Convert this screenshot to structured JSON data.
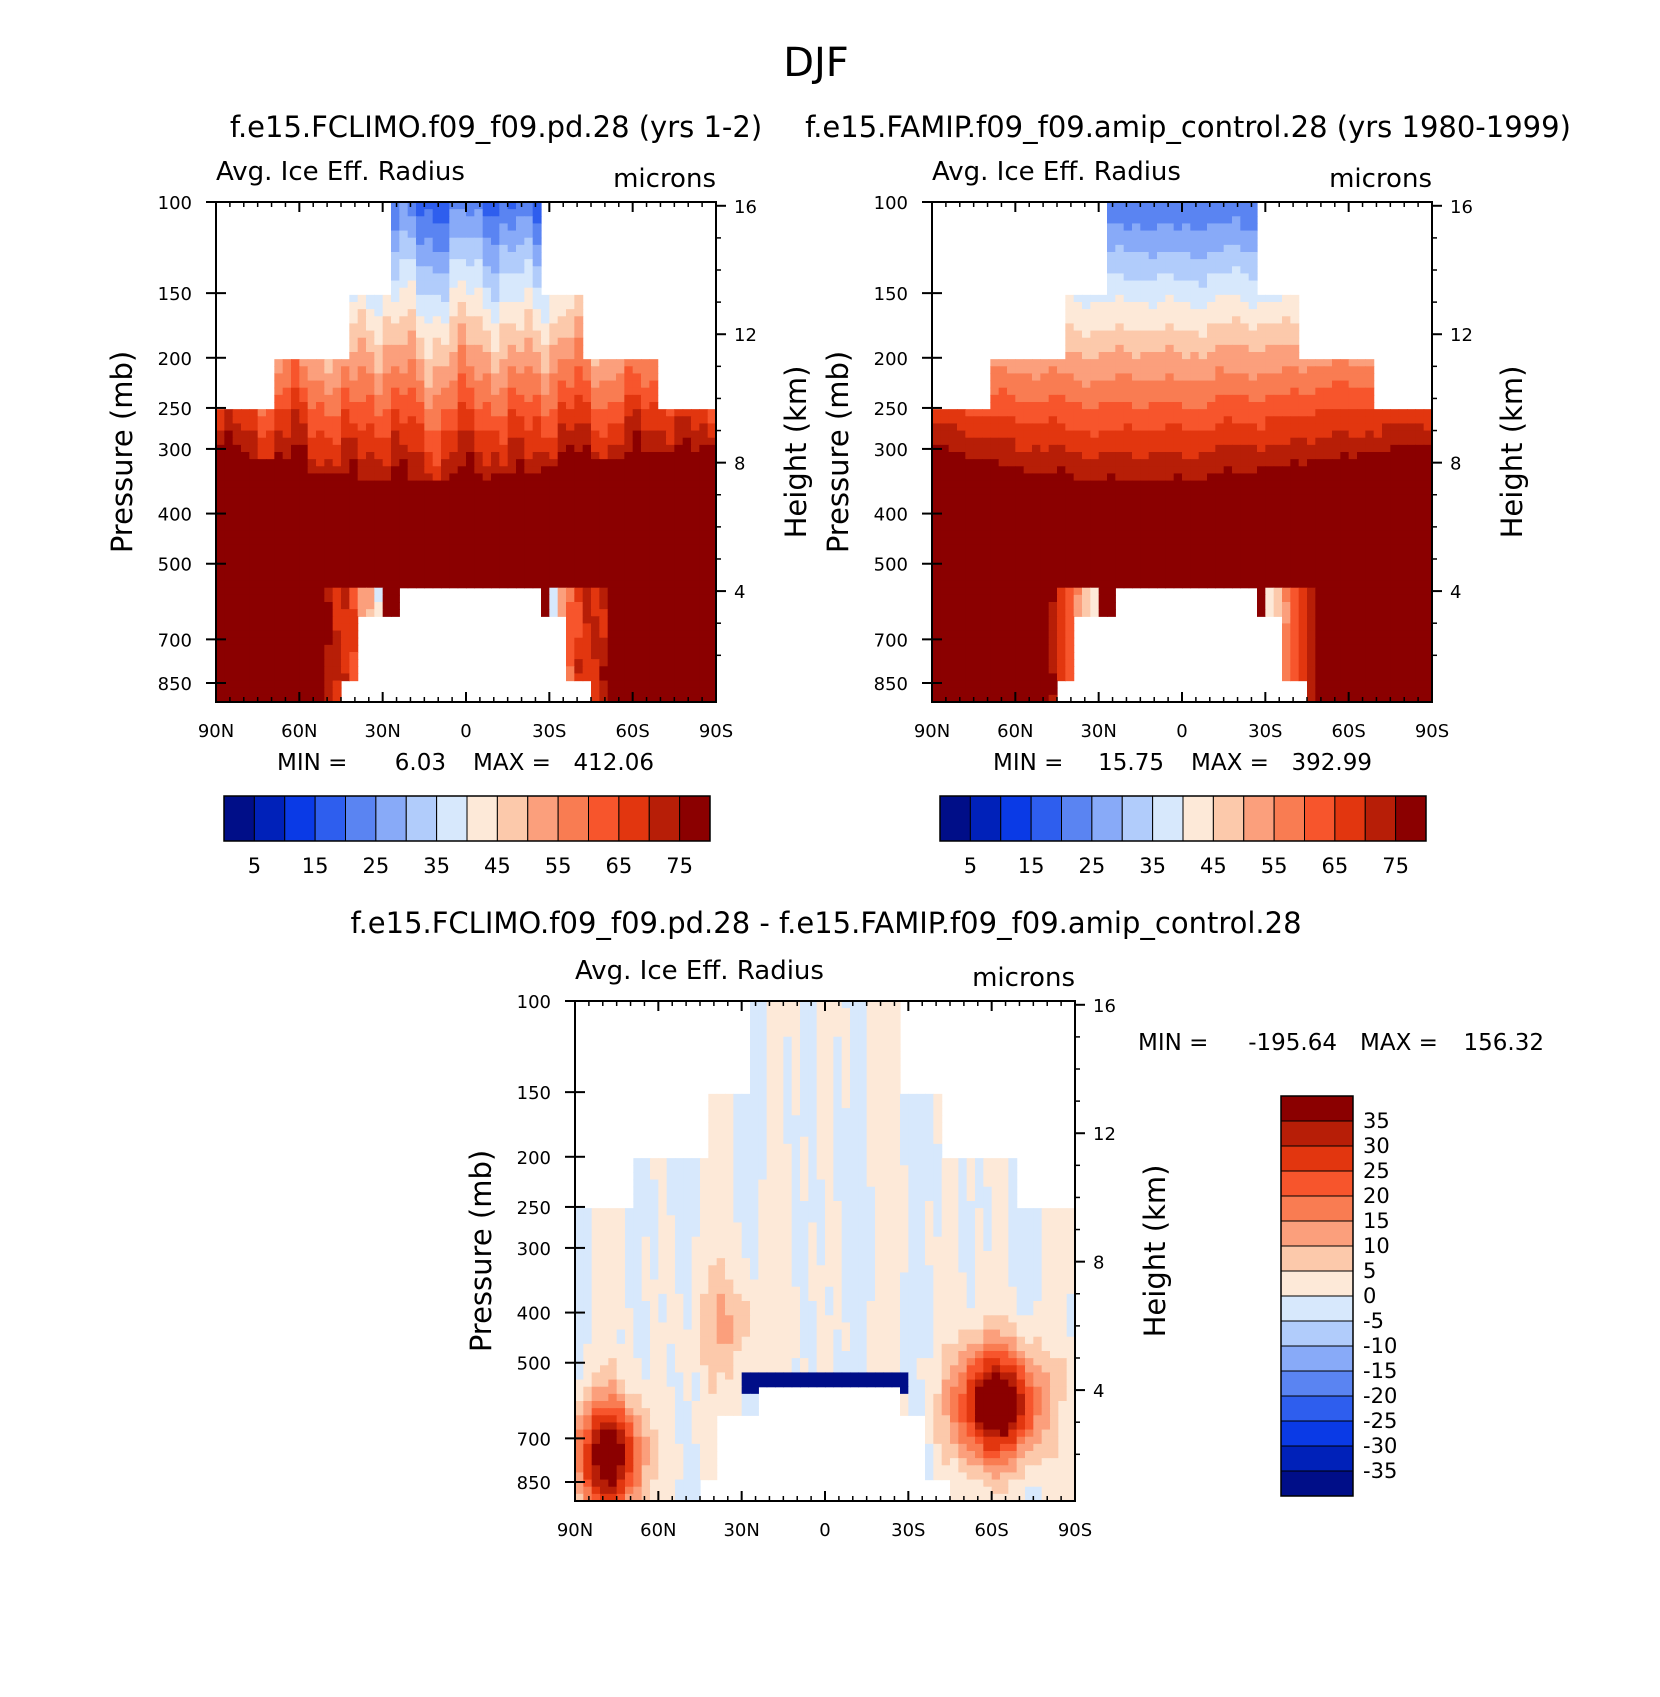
{
  "figure": {
    "title": "DJF"
  },
  "colors": {
    "positive_ramp": [
      "#fde9d8",
      "#fcc9ab",
      "#fb9f7c",
      "#f97c52",
      "#f7552c",
      "#e2360f",
      "#b71e07",
      "#8b0000"
    ],
    "negative_ramp": [
      "#d7e8fc",
      "#b1ccfb",
      "#88aaf8",
      "#5a84f2",
      "#2e5eee",
      "#0a3ae6",
      "#0021b9",
      "#000e88"
    ],
    "frame": "#000000"
  },
  "chart_data": [
    {
      "type": "heatmap",
      "id": "panel_a",
      "title": "f.e15.FCLIMO.f09_f09.pd.28 (yrs 1-2)",
      "variable_label": "Avg. Ice Eff. Radius",
      "units_label": "microns",
      "xlabel": "",
      "ylabel": "Pressure (mb)",
      "ylabel_right": "Height (km)",
      "x_ticks": [
        "90N",
        "60N",
        "30N",
        "0",
        "30S",
        "60S",
        "90S"
      ],
      "x_values": [
        90,
        60,
        30,
        0,
        -30,
        -60,
        -90
      ],
      "y_ticks": [
        100,
        150,
        200,
        250,
        300,
        400,
        500,
        700,
        850
      ],
      "y_range": [
        100,
        925
      ],
      "y_scale": "log",
      "height_ticks": [
        16,
        12,
        8,
        4
      ],
      "min_label": "MIN =",
      "min_value": "6.03",
      "max_label": "MAX =",
      "max_value": "412.06",
      "colorbar": {
        "orientation": "horizontal",
        "levels": [
          0,
          5,
          10,
          15,
          20,
          25,
          30,
          35,
          40,
          45,
          50,
          55,
          60,
          65,
          70,
          75
        ],
        "labels": [
          "5",
          "15",
          "25",
          "35",
          "45",
          "55",
          "65",
          "75"
        ]
      },
      "field_description": "ice effective radius: max (>75) in mid troposphere 300-550 mb, decreasing upward to 15-20 near 100 mb"
    },
    {
      "type": "heatmap",
      "id": "panel_b",
      "title": "f.e15.FAMIP.f09_f09.amip_control.28 (yrs 1980-1999)",
      "variable_label": "Avg. Ice Eff. Radius",
      "units_label": "microns",
      "xlabel": "",
      "ylabel": "Pressure (mb)",
      "ylabel_right": "Height (km)",
      "x_ticks": [
        "90N",
        "60N",
        "30N",
        "0",
        "30S",
        "60S",
        "90S"
      ],
      "x_values": [
        90,
        60,
        30,
        0,
        -30,
        -60,
        -90
      ],
      "y_ticks": [
        100,
        150,
        200,
        250,
        300,
        400,
        500,
        700,
        850
      ],
      "y_range": [
        100,
        925
      ],
      "y_scale": "log",
      "height_ticks": [
        16,
        12,
        8,
        4
      ],
      "min_label": "MIN =",
      "min_value": "15.75",
      "max_label": "MAX =",
      "max_value": "392.99",
      "colorbar": {
        "orientation": "horizontal",
        "levels": [
          0,
          5,
          10,
          15,
          20,
          25,
          30,
          35,
          40,
          45,
          50,
          55,
          60,
          65,
          70,
          75
        ],
        "labels": [
          "5",
          "15",
          "25",
          "35",
          "45",
          "55",
          "65",
          "75"
        ]
      },
      "field_description": "ice effective radius: max (>75) in mid troposphere 300-550 mb, decreasing upward to 20-25 near 100 mb"
    },
    {
      "type": "heatmap",
      "id": "panel_diff",
      "title": "f.e15.FCLIMO.f09_f09.pd.28 - f.e15.FAMIP.f09_f09.amip_control.28",
      "variable_label": "Avg. Ice Eff. Radius",
      "units_label": "microns",
      "xlabel": "",
      "ylabel": "Pressure (mb)",
      "ylabel_right": "Height (km)",
      "x_ticks": [
        "90N",
        "60N",
        "30N",
        "0",
        "30S",
        "60S",
        "90S"
      ],
      "x_values": [
        90,
        60,
        30,
        0,
        -30,
        -60,
        -90
      ],
      "y_ticks": [
        100,
        150,
        200,
        250,
        300,
        400,
        500,
        700,
        850
      ],
      "y_range": [
        100,
        925
      ],
      "y_scale": "log",
      "height_ticks": [
        16,
        12,
        8,
        4
      ],
      "min_label": "MIN =",
      "min_value": "-195.64",
      "max_label": "MAX =",
      "max_value": "156.32",
      "colorbar": {
        "orientation": "vertical",
        "levels": [
          -35,
          -30,
          -25,
          -20,
          -15,
          -10,
          -5,
          0,
          5,
          10,
          15,
          20,
          25,
          30,
          35
        ],
        "labels": [
          "35",
          "30",
          "25",
          "20",
          "15",
          "10",
          "5",
          "0",
          "-5",
          "-10",
          "-15",
          "-20",
          "-25",
          "-30",
          "-35"
        ]
      },
      "field_description": "difference: mostly -5..+5, positive >35 near 60S 550-700 mb and 90N-60N lower levels, strongly negative just above 550 mb near the equator"
    }
  ]
}
